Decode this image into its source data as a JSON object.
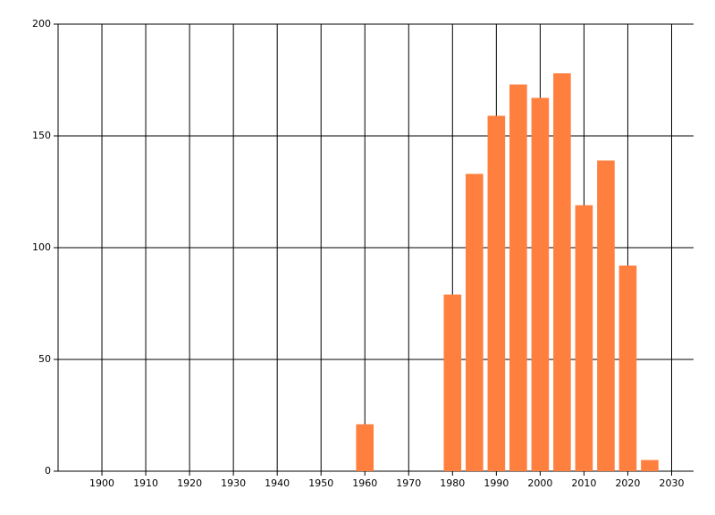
{
  "chart_data": {
    "type": "bar",
    "x": [
      1960,
      1980,
      1985,
      1990,
      1995,
      2000,
      2005,
      2010,
      2015,
      2020,
      2025
    ],
    "values": [
      21,
      79,
      133,
      159,
      173,
      167,
      178,
      119,
      139,
      92,
      5
    ],
    "color": "#ff7f3f",
    "xlim": [
      1890,
      2035
    ],
    "xticks": [
      1900,
      1910,
      1920,
      1930,
      1940,
      1950,
      1960,
      1970,
      1980,
      1990,
      2000,
      2010,
      2020,
      2030
    ],
    "ylim": [
      0,
      200
    ],
    "yticks": [
      0,
      50,
      100,
      150,
      200
    ],
    "grid": true
  }
}
